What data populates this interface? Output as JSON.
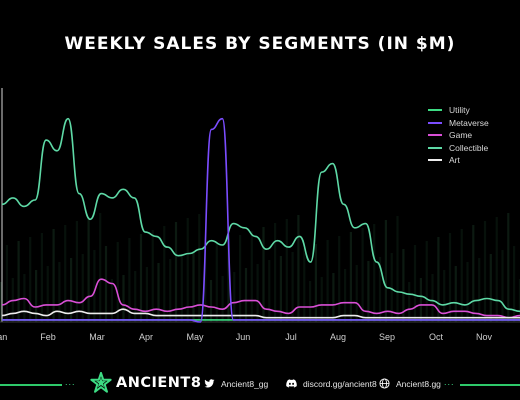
{
  "chart_data": {
    "type": "line",
    "title": "WEEKLY SALES BY SEGMENTS (IN $M)",
    "x_ticks": [
      "Jan",
      "Feb",
      "Mar",
      "Apr",
      "May",
      "Jun",
      "Jul",
      "Aug",
      "Sep",
      "Oct",
      "Nov"
    ],
    "weeks": 48,
    "legend_position": "top-right",
    "grid": false,
    "series": [
      {
        "name": "Utility",
        "color": "#3ddc84",
        "values": [
          1,
          1,
          1,
          1,
          1,
          1,
          1,
          1,
          1,
          1,
          1,
          1,
          1,
          1,
          1,
          1,
          1,
          1,
          1,
          1,
          1,
          1,
          1,
          1,
          1,
          1,
          1,
          1,
          1,
          1,
          1,
          1,
          1,
          1,
          1,
          1,
          1,
          1,
          1,
          1,
          1,
          1,
          1,
          1,
          1,
          1,
          1,
          1
        ]
      },
      {
        "name": "Metaverse",
        "color": "#7b4dff",
        "values": [
          1,
          1,
          1,
          1,
          1,
          1,
          1,
          1,
          1,
          1,
          1,
          1,
          1,
          1,
          1,
          1,
          1,
          1,
          0,
          90,
          95,
          1,
          1,
          1,
          1,
          1,
          1,
          1,
          1,
          1,
          1,
          1,
          1,
          1,
          1,
          1,
          1,
          1,
          1,
          1,
          1,
          1,
          1,
          1,
          1,
          1,
          1,
          1
        ]
      },
      {
        "name": "Game",
        "color": "#d94fd6",
        "values": [
          8,
          10,
          11,
          7,
          8,
          8,
          10,
          9,
          12,
          20,
          18,
          8,
          6,
          5,
          6,
          5,
          6,
          7,
          8,
          7,
          6,
          9,
          10,
          10,
          6,
          5,
          4,
          7,
          7,
          8,
          8,
          9,
          9,
          5,
          4,
          5,
          4,
          6,
          8,
          8,
          4,
          5,
          5,
          4,
          3,
          3,
          2,
          3
        ]
      },
      {
        "name": "Collectible",
        "color": "#5ed9a6",
        "values": [
          55,
          58,
          54,
          57,
          85,
          80,
          95,
          60,
          48,
          60,
          58,
          62,
          58,
          42,
          40,
          35,
          31,
          32,
          34,
          38,
          36,
          46,
          44,
          40,
          34,
          38,
          35,
          40,
          28,
          70,
          74,
          55,
          44,
          46,
          28,
          16,
          14,
          13,
          12,
          10,
          8,
          9,
          8,
          10,
          11,
          10,
          6,
          5
        ]
      },
      {
        "name": "Art",
        "color": "#ededed",
        "values": [
          3,
          4,
          5,
          4,
          3,
          5,
          4,
          5,
          4,
          4,
          4,
          6,
          4,
          4,
          3,
          3,
          3,
          3,
          3,
          3,
          3,
          3,
          3,
          3,
          2,
          2,
          2,
          2,
          2,
          2,
          2,
          3,
          3,
          2,
          2,
          2,
          2,
          2,
          2,
          2,
          2,
          2,
          2,
          2,
          2,
          2,
          2,
          2
        ]
      }
    ]
  },
  "footer": {
    "brand": "ANCIENT8",
    "twitter": "Ancient8_gg",
    "discord": "discord.gg/ancient8",
    "website": "Ancient8.gg",
    "dots": "..."
  }
}
